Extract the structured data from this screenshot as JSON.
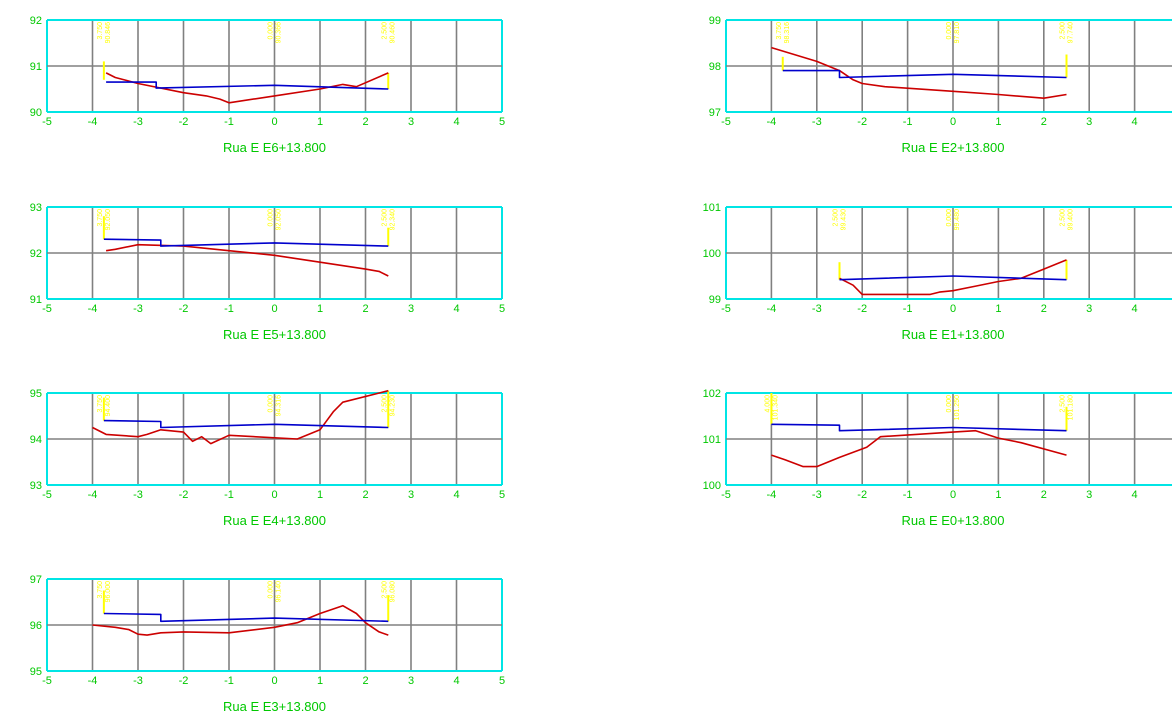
{
  "colors": {
    "background": "#ffffff",
    "grid_inner": "#808080",
    "grid_border": "#00e5e5",
    "axis_text": "#00c800",
    "terrain": "#cc0000",
    "design": "#0000cc",
    "markers": "#ffff00"
  },
  "chart_data": [
    {
      "type": "line",
      "title": "Rua E E6+13.800",
      "x_ticks": [
        "-5",
        "-4",
        "-3",
        "-2",
        "-1",
        "0",
        "1",
        "2",
        "3",
        "4",
        "5"
      ],
      "y_ticks": [
        "90",
        "91",
        "92"
      ],
      "xlim": [
        -5,
        5
      ],
      "ylim": [
        90,
        92
      ],
      "series": [
        {
          "values": [
            [
              -3.7,
              90.85
            ],
            [
              -3.5,
              90.75
            ],
            [
              -3,
              90.62
            ],
            [
              -2,
              90.42
            ],
            [
              -1.5,
              90.35
            ],
            [
              -1.2,
              90.28
            ],
            [
              -1,
              90.2
            ],
            [
              0,
              90.35
            ],
            [
              1,
              90.5
            ],
            [
              1.5,
              90.6
            ],
            [
              1.8,
              90.55
            ],
            [
              2.5,
              90.85
            ]
          ]
        },
        {
          "values": [
            [
              -3.7,
              90.65
            ],
            [
              -2.6,
              90.65
            ],
            [
              -2.6,
              90.52
            ],
            [
              0,
              90.58
            ],
            [
              2.5,
              90.5
            ]
          ]
        }
      ],
      "markers": [
        {
          "x": -3.75,
          "y_from": 90.7,
          "y_to": 91.1,
          "label": "3.750 90.846"
        },
        {
          "x": 0,
          "y_from": null,
          "y_to": null,
          "label": "0.000 90.366"
        },
        {
          "x": 2.5,
          "y_from": 90.5,
          "y_to": 90.85,
          "label": "2.500 90.460"
        }
      ]
    },
    {
      "type": "line",
      "title": "Rua E E2+13.800",
      "x_ticks": [
        "-5",
        "-4",
        "-3",
        "-2",
        "-1",
        "0",
        "1",
        "2",
        "3",
        "4",
        "5"
      ],
      "y_ticks": [
        "97",
        "98",
        "99"
      ],
      "xlim": [
        -5,
        5
      ],
      "ylim": [
        97,
        99
      ],
      "series": [
        {
          "values": [
            [
              -4,
              98.4
            ],
            [
              -3,
              98.1
            ],
            [
              -2.5,
              97.9
            ],
            [
              -2.2,
              97.7
            ],
            [
              -2,
              97.62
            ],
            [
              -1.5,
              97.55
            ],
            [
              0,
              97.45
            ],
            [
              1,
              97.38
            ],
            [
              2,
              97.3
            ],
            [
              2.5,
              97.38
            ]
          ]
        },
        {
          "values": [
            [
              -3.75,
              97.9
            ],
            [
              -2.5,
              97.9
            ],
            [
              -2.5,
              97.75
            ],
            [
              0,
              97.82
            ],
            [
              2.5,
              97.75
            ]
          ]
        }
      ],
      "markers": [
        {
          "x": -3.75,
          "y_from": 97.9,
          "y_to": 98.2,
          "label": "3.750 98.316"
        },
        {
          "x": 0,
          "y_from": null,
          "y_to": null,
          "label": "0.000 97.810"
        },
        {
          "x": 2.5,
          "y_from": 97.75,
          "y_to": 98.25,
          "label": "2.500 97.740"
        }
      ]
    },
    {
      "type": "line",
      "title": "Rua E E5+13.800",
      "x_ticks": [
        "-5",
        "-4",
        "-3",
        "-2",
        "-1",
        "0",
        "1",
        "2",
        "3",
        "4",
        "5"
      ],
      "y_ticks": [
        "91",
        "92",
        "93"
      ],
      "xlim": [
        -5,
        5
      ],
      "ylim": [
        91,
        93
      ],
      "series": [
        {
          "values": [
            [
              -3.7,
              92.05
            ],
            [
              -3.5,
              92.08
            ],
            [
              -3,
              92.18
            ],
            [
              -2,
              92.15
            ],
            [
              -1,
              92.05
            ],
            [
              0,
              91.95
            ],
            [
              1,
              91.8
            ],
            [
              2,
              91.65
            ],
            [
              2.3,
              91.6
            ],
            [
              2.5,
              91.5
            ]
          ]
        },
        {
          "values": [
            [
              -3.75,
              92.3
            ],
            [
              -2.5,
              92.28
            ],
            [
              -2.5,
              92.15
            ],
            [
              0,
              92.22
            ],
            [
              2.5,
              92.15
            ]
          ]
        }
      ],
      "markers": [
        {
          "x": -3.75,
          "y_from": 92.3,
          "y_to": 92.8,
          "label": "3.750 92.050"
        },
        {
          "x": 0,
          "y_from": null,
          "y_to": null,
          "label": "0.000 92.050"
        },
        {
          "x": 2.5,
          "y_from": 92.15,
          "y_to": 92.55,
          "label": "2.500 92.340"
        }
      ]
    },
    {
      "type": "line",
      "title": "Rua E E1+13.800",
      "x_ticks": [
        "-5",
        "-4",
        "-3",
        "-2",
        "-1",
        "0",
        "1",
        "2",
        "3",
        "4",
        "5"
      ],
      "y_ticks": [
        "99",
        "100",
        "101"
      ],
      "xlim": [
        -5,
        5
      ],
      "ylim": [
        99,
        101
      ],
      "series": [
        {
          "values": [
            [
              -2.5,
              99.45
            ],
            [
              -2.2,
              99.3
            ],
            [
              -2,
              99.1
            ],
            [
              -1,
              99.1
            ],
            [
              -0.5,
              99.1
            ],
            [
              -0.3,
              99.15
            ],
            [
              0,
              99.18
            ],
            [
              0.5,
              99.28
            ],
            [
              1,
              99.38
            ],
            [
              1.5,
              99.45
            ],
            [
              2,
              99.65
            ],
            [
              2.5,
              99.85
            ]
          ]
        },
        {
          "values": [
            [
              -2.5,
              99.42
            ],
            [
              0,
              99.5
            ],
            [
              2.5,
              99.42
            ]
          ]
        }
      ],
      "markers": [
        {
          "x": -2.5,
          "y_from": 99.42,
          "y_to": 99.8,
          "label": "2.500 99.430"
        },
        {
          "x": 0,
          "y_from": null,
          "y_to": null,
          "label": "0.000 99.480"
        },
        {
          "x": 2.5,
          "y_from": 99.42,
          "y_to": 99.85,
          "label": "2.500 99.400"
        }
      ]
    },
    {
      "type": "line",
      "title": "Rua E E4+13.800",
      "x_ticks": [
        "-5",
        "-4",
        "-3",
        "-2",
        "-1",
        "0",
        "1",
        "2",
        "3",
        "4",
        "5"
      ],
      "y_ticks": [
        "93",
        "94",
        "95"
      ],
      "xlim": [
        -5,
        5
      ],
      "ylim": [
        93,
        95
      ],
      "series": [
        {
          "values": [
            [
              -4,
              94.25
            ],
            [
              -3.7,
              94.1
            ],
            [
              -3,
              94.05
            ],
            [
              -2.8,
              94.1
            ],
            [
              -2.5,
              94.2
            ],
            [
              -2,
              94.15
            ],
            [
              -1.8,
              93.95
            ],
            [
              -1.6,
              94.05
            ],
            [
              -1.4,
              93.9
            ],
            [
              -1,
              94.08
            ],
            [
              0.5,
              94.0
            ],
            [
              1,
              94.2
            ],
            [
              1.3,
              94.6
            ],
            [
              1.5,
              94.8
            ],
            [
              2.5,
              95.05
            ]
          ]
        },
        {
          "values": [
            [
              -3.75,
              94.4
            ],
            [
              -2.5,
              94.38
            ],
            [
              -2.5,
              94.25
            ],
            [
              0,
              94.32
            ],
            [
              2.5,
              94.25
            ]
          ]
        }
      ],
      "markers": [
        {
          "x": -3.75,
          "y_from": 94.4,
          "y_to": 94.9,
          "label": "3.750 94.400"
        },
        {
          "x": 0,
          "y_from": null,
          "y_to": null,
          "label": "0.000 94.316"
        },
        {
          "x": 2.5,
          "y_from": 94.25,
          "y_to": 95.05,
          "label": "2.500 94.230"
        }
      ]
    },
    {
      "type": "line",
      "title": "Rua E E0+13.800",
      "x_ticks": [
        "-5",
        "-4",
        "-3",
        "-2",
        "-1",
        "0",
        "1",
        "2",
        "3",
        "4",
        "5"
      ],
      "y_ticks": [
        "100",
        "101",
        "102"
      ],
      "xlim": [
        -5,
        5
      ],
      "ylim": [
        100,
        102
      ],
      "series": [
        {
          "values": [
            [
              -4,
              100.65
            ],
            [
              -3.7,
              100.55
            ],
            [
              -3.3,
              100.4
            ],
            [
              -3,
              100.4
            ],
            [
              -2.5,
              100.6
            ],
            [
              -1.9,
              100.82
            ],
            [
              -1.6,
              101.05
            ],
            [
              0,
              101.15
            ],
            [
              0.5,
              101.18
            ],
            [
              1,
              101.02
            ],
            [
              1.5,
              100.92
            ],
            [
              2.5,
              100.65
            ]
          ]
        },
        {
          "values": [
            [
              -4,
              101.32
            ],
            [
              -2.5,
              101.3
            ],
            [
              -2.5,
              101.18
            ],
            [
              0,
              101.25
            ],
            [
              2.5,
              101.18
            ]
          ]
        }
      ],
      "markers": [
        {
          "x": -4,
          "y_from": 101.32,
          "y_to": 102.0,
          "label": "4.000 101.340"
        },
        {
          "x": 0,
          "y_from": null,
          "y_to": null,
          "label": "0.000 101.250"
        },
        {
          "x": 2.5,
          "y_from": 101.18,
          "y_to": 101.7,
          "label": "2.500 101.180"
        }
      ]
    },
    {
      "type": "line",
      "title": "Rua E E3+13.800",
      "x_ticks": [
        "-5",
        "-4",
        "-3",
        "-2",
        "-1",
        "0",
        "1",
        "2",
        "3",
        "4",
        "5"
      ],
      "y_ticks": [
        "95",
        "96",
        "97"
      ],
      "xlim": [
        -5,
        5
      ],
      "ylim": [
        95,
        97
      ],
      "series": [
        {
          "values": [
            [
              -4,
              96.0
            ],
            [
              -3.5,
              95.95
            ],
            [
              -3.2,
              95.9
            ],
            [
              -3,
              95.8
            ],
            [
              -2.8,
              95.78
            ],
            [
              -2.5,
              95.83
            ],
            [
              -2,
              95.85
            ],
            [
              -1,
              95.83
            ],
            [
              0,
              95.95
            ],
            [
              0.5,
              96.05
            ],
            [
              1,
              96.25
            ],
            [
              1.5,
              96.42
            ],
            [
              1.8,
              96.25
            ],
            [
              2,
              96.05
            ],
            [
              2.3,
              95.85
            ],
            [
              2.5,
              95.78
            ]
          ]
        },
        {
          "values": [
            [
              -3.75,
              96.25
            ],
            [
              -2.5,
              96.23
            ],
            [
              -2.5,
              96.08
            ],
            [
              0,
              96.15
            ],
            [
              2.5,
              96.08
            ]
          ]
        }
      ],
      "markers": [
        {
          "x": -3.75,
          "y_from": 96.25,
          "y_to": 96.75,
          "label": "3.750 96.000"
        },
        {
          "x": 0,
          "y_from": null,
          "y_to": null,
          "label": "0.000 96.140"
        },
        {
          "x": 2.5,
          "y_from": 96.08,
          "y_to": 96.65,
          "label": "2.500 96.080"
        }
      ]
    }
  ]
}
